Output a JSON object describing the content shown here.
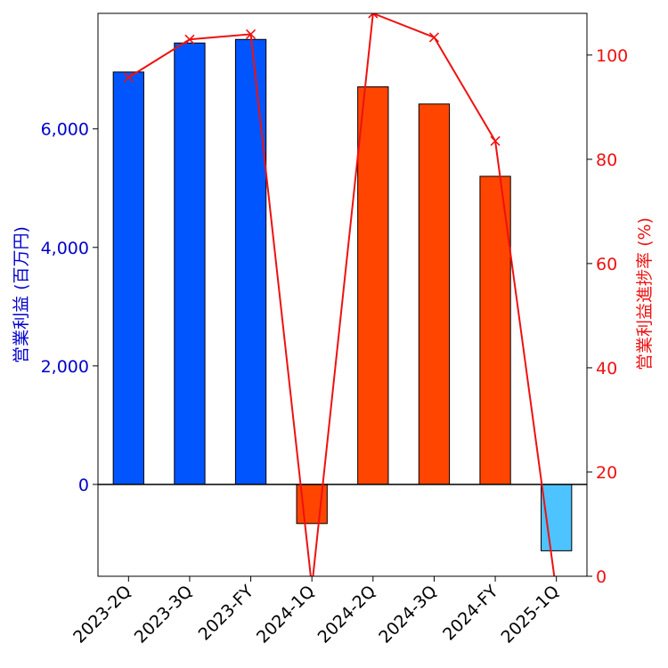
{
  "chart_data": {
    "type": "bar",
    "categories": [
      "2023-2Q",
      "2023-3Q",
      "2023-FY",
      "2024-1Q",
      "2024-2Q",
      "2024-3Q",
      "2024-FY",
      "2025-1Q"
    ],
    "series": [
      {
        "values": [
          6960,
          7450,
          7510,
          -660,
          6710,
          6420,
          5200,
          -1120
        ],
        "colors": [
          "#0055ff",
          "#0055ff",
          "#0055ff",
          "#ff4500",
          "#ff4500",
          "#ff4500",
          "#ff4500",
          "#4dc3ff"
        ],
        "axis": "left"
      },
      {
        "type": "line",
        "values": [
          95.7,
          103.0,
          104.0,
          -2.0,
          108.0,
          103.4,
          83.5,
          -3.0
        ],
        "color": "#ee1111",
        "marker": "x",
        "axis": "right"
      }
    ],
    "ylabel": "営業利益 (百万円)",
    "y2label": "営業利益進捗率 (%)",
    "ylim": [
      -1550,
      7950
    ],
    "y2lim": [
      0,
      108
    ],
    "yticks": [
      0,
      2000,
      4000,
      6000
    ],
    "ytick_labels": [
      "0",
      "2,000",
      "4,000",
      "6,000"
    ],
    "y2ticks": [
      0,
      20,
      40,
      60,
      80,
      100
    ],
    "y2tick_labels": [
      "0",
      "20",
      "40",
      "60",
      "80",
      "100"
    ],
    "left_axis_color": "#0000cc",
    "right_axis_color": "#ee1111",
    "bar_edge_color": "#000000",
    "grid": false,
    "zero_line": true
  }
}
